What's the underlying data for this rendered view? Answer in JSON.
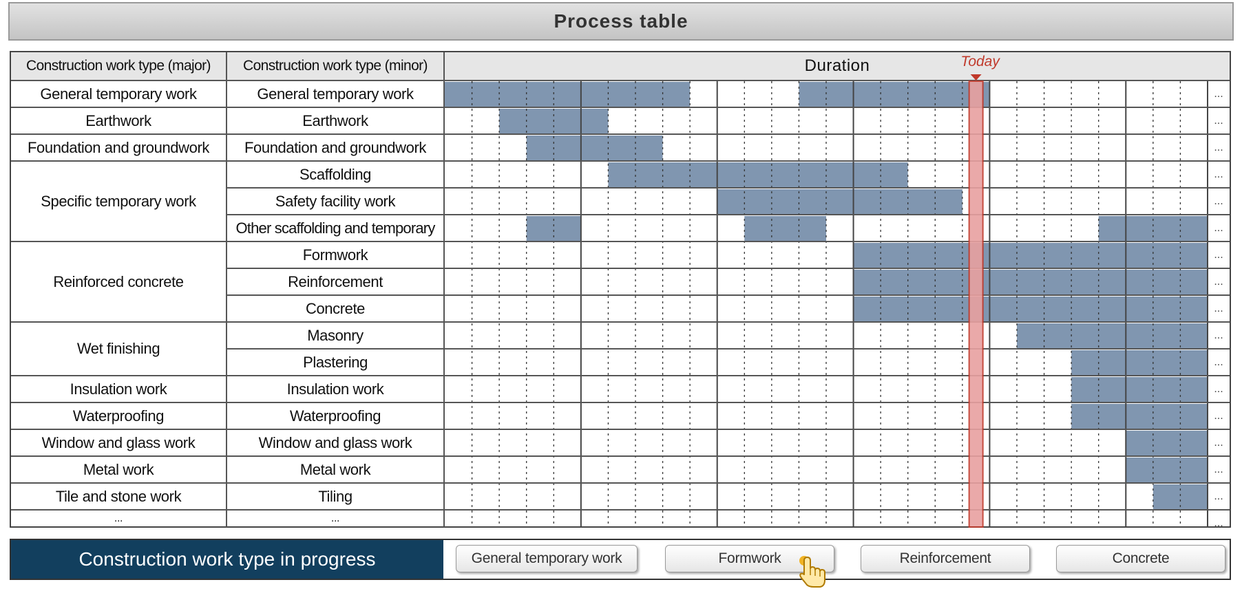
{
  "title": "Process table",
  "headers": {
    "major": "Construction work type (major)",
    "minor": "Construction work type (minor)",
    "duration": "Duration",
    "today": "Today"
  },
  "more_glyph": "...",
  "rows": [
    {
      "major": "General temporary work",
      "minor": "General temporary work",
      "bars": [
        [
          0,
          9
        ],
        [
          13,
          20
        ]
      ]
    },
    {
      "major": "Earthwork",
      "minor": "Earthwork",
      "bars": [
        [
          2,
          6
        ]
      ]
    },
    {
      "major": "Foundation and groundwork",
      "minor": "Foundation and groundwork",
      "bars": [
        [
          3,
          8
        ]
      ]
    },
    {
      "major": "Specific temporary work",
      "minor": "Scaffolding",
      "bars": [
        [
          6,
          17
        ]
      ]
    },
    {
      "major": "",
      "minor": "Safety facility work",
      "bars": [
        [
          10,
          19
        ]
      ]
    },
    {
      "major": "",
      "minor": "Other scaffolding and temporary",
      "bars": [
        [
          3,
          5
        ],
        [
          11,
          14
        ],
        [
          24,
          28
        ]
      ]
    },
    {
      "major": "Reinforced concrete",
      "minor": "Formwork",
      "bars": [
        [
          15,
          28
        ]
      ]
    },
    {
      "major": "",
      "minor": "Reinforcement",
      "bars": [
        [
          15,
          28
        ]
      ]
    },
    {
      "major": "",
      "minor": "Concrete",
      "bars": [
        [
          15,
          28
        ]
      ]
    },
    {
      "major": "Wet finishing",
      "minor": "Masonry",
      "bars": [
        [
          21,
          28
        ]
      ]
    },
    {
      "major": "",
      "minor": "Plastering",
      "bars": [
        [
          23,
          28
        ]
      ]
    },
    {
      "major": "Insulation work",
      "minor": "Insulation work",
      "bars": [
        [
          23,
          28
        ]
      ]
    },
    {
      "major": "Waterproofing",
      "minor": "Waterproofing",
      "bars": [
        [
          23,
          28
        ]
      ]
    },
    {
      "major": "Window and glass work",
      "minor": "Window and glass work",
      "bars": [
        [
          25,
          28
        ]
      ]
    },
    {
      "major": "Metal work",
      "minor": "Metal work",
      "bars": [
        [
          25,
          28
        ]
      ]
    },
    {
      "major": "Tile and stone work",
      "minor": "Tiling",
      "bars": [
        [
          26,
          28
        ]
      ]
    },
    {
      "major": "...",
      "minor": "...",
      "bars": []
    }
  ],
  "timeline": {
    "periods": 28,
    "today_period": 19.5
  },
  "colors": {
    "bar": "#8096b0",
    "today": "#e8a0a0",
    "today_border": "#c0392b",
    "label_bg": "#123f5e"
  },
  "bottom": {
    "label": "Construction work type in progress",
    "chips": [
      "General temporary work",
      "Formwork",
      "Reinforcement",
      "Concrete"
    ],
    "cursor_icon": "pointing-hand-icon"
  }
}
